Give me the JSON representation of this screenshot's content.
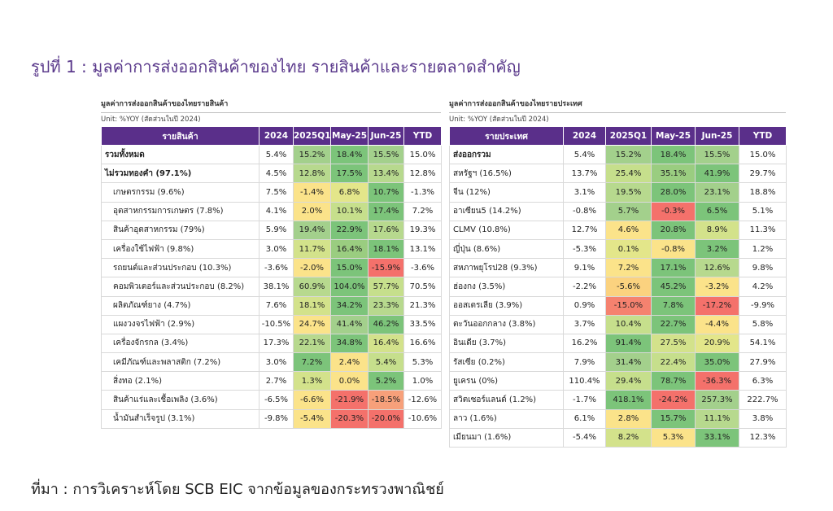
{
  "figure_title": "รูปที่ 1 : มูลค่าการส่งออกสินค้าของไทย รายสินค้าและรายตลาดสำคัญ",
  "source": "ที่มา : การวิเคราะห์โดย SCB EIC จากข้อมูลของกระทรวงพาณิชย์",
  "left_table": {
    "title": "มูลค่าการส่งออกสินค้าของไทยรายสินค้า",
    "unit": "Unit: %YOY (สัดส่วนในปี 2024)",
    "headers": [
      "รายสินค้า",
      "2024",
      "2025Q1",
      "May-25",
      "Jun-25",
      "YTD"
    ],
    "rows": [
      {
        "name": "รวมทั้งหมด",
        "style": "bold",
        "values": [
          "5.4%",
          "15.2%",
          "18.4%",
          "15.5%",
          "15.0%"
        ],
        "colors": [
          "#ffffff",
          "#a3d08c",
          "#7cc47a",
          "#a3d08c",
          "#ffffff"
        ]
      },
      {
        "name": "ไม่รวมทองคำ (97.1%)",
        "style": "bold",
        "values": [
          "4.5%",
          "12.8%",
          "17.5%",
          "13.4%",
          "12.8%"
        ],
        "colors": [
          "#ffffff",
          "#b7d98e",
          "#7cc47a",
          "#b7d98e",
          "#ffffff"
        ]
      },
      {
        "name": "เกษตรกรรม (9.6%)",
        "style": "indent",
        "values": [
          "7.5%",
          "-1.4%",
          "6.8%",
          "10.7%",
          "-1.3%"
        ],
        "colors": [
          "#ffffff",
          "#fbe38a",
          "#e3e68a",
          "#7cc47a",
          "#ffffff"
        ]
      },
      {
        "name": "อุตสาหกรรมการเกษตร (7.8%)",
        "style": "indent",
        "values": [
          "4.1%",
          "2.0%",
          "10.1%",
          "17.4%",
          "7.2%"
        ],
        "colors": [
          "#ffffff",
          "#fbe38a",
          "#c6df8c",
          "#7cc47a",
          "#ffffff"
        ]
      },
      {
        "name": "สินค้าอุตสาหกรรม (79%)",
        "style": "indent",
        "values": [
          "5.9%",
          "19.4%",
          "22.9%",
          "17.6%",
          "19.3%"
        ],
        "colors": [
          "#ffffff",
          "#a3d08c",
          "#7cc47a",
          "#b7d98e",
          "#ffffff"
        ]
      },
      {
        "name": "เครื่องใช้ไฟฟ้า (9.8%)",
        "style": "indent",
        "values": [
          "3.0%",
          "11.7%",
          "16.4%",
          "18.1%",
          "13.1%"
        ],
        "colors": [
          "#ffffff",
          "#d3e28b",
          "#9acd80",
          "#7cc47a",
          "#ffffff"
        ]
      },
      {
        "name": "รถยนต์และส่วนประกอบ (10.3%)",
        "style": "indent",
        "values": [
          "-3.6%",
          "-2.0%",
          "15.0%",
          "-15.9%",
          "-3.6%"
        ],
        "colors": [
          "#ffffff",
          "#fbe38a",
          "#7cc47a",
          "#f4716b",
          "#ffffff"
        ]
      },
      {
        "name": "คอมพิวเตอร์และส่วนประกอบ (8.2%)",
        "style": "indent",
        "values": [
          "38.1%",
          "60.9%",
          "104.0%",
          "57.7%",
          "70.5%"
        ],
        "colors": [
          "#ffffff",
          "#b7d98e",
          "#7cc47a",
          "#c6df8c",
          "#ffffff"
        ]
      },
      {
        "name": "ผลิตภัณฑ์ยาง (4.7%)",
        "style": "indent",
        "values": [
          "7.6%",
          "18.1%",
          "34.2%",
          "23.3%",
          "21.3%"
        ],
        "colors": [
          "#ffffff",
          "#d3e28b",
          "#7cc47a",
          "#b7d98e",
          "#ffffff"
        ]
      },
      {
        "name": "แผงวงจรไฟฟ้า (2.9%)",
        "style": "indent",
        "values": [
          "-10.5%",
          "24.7%",
          "41.4%",
          "46.2%",
          "33.5%"
        ],
        "colors": [
          "#ffffff",
          "#fbe38a",
          "#a3d08c",
          "#7cc47a",
          "#ffffff"
        ]
      },
      {
        "name": "เครื่องจักรกล (3.4%)",
        "style": "indent",
        "values": [
          "17.3%",
          "22.1%",
          "34.8%",
          "16.4%",
          "16.6%"
        ],
        "colors": [
          "#ffffff",
          "#b7d98e",
          "#7cc47a",
          "#d3e28b",
          "#ffffff"
        ]
      },
      {
        "name": "เคมีภัณฑ์และพลาสติก (7.2%)",
        "style": "indent",
        "values": [
          "3.0%",
          "7.2%",
          "2.4%",
          "5.4%",
          "5.3%"
        ],
        "colors": [
          "#ffffff",
          "#7cc47a",
          "#fbe38a",
          "#c6df8c",
          "#ffffff"
        ]
      },
      {
        "name": "สิ่งทอ (2.1%)",
        "style": "indent",
        "values": [
          "2.7%",
          "1.3%",
          "0.0%",
          "5.2%",
          "1.0%"
        ],
        "colors": [
          "#ffffff",
          "#d3e28b",
          "#fbe38a",
          "#7cc47a",
          "#ffffff"
        ]
      },
      {
        "name": "สินค้าแร่และเชื้อเพลิง (3.6%)",
        "style": "indent",
        "values": [
          "-6.5%",
          "-6.6%",
          "-21.9%",
          "-18.5%",
          "-12.6%"
        ],
        "colors": [
          "#ffffff",
          "#fbe38a",
          "#f4716b",
          "#f7a07a",
          "#ffffff"
        ]
      },
      {
        "name": "น้ำมันสำเร็จรูป (3.1%)",
        "style": "indent",
        "values": [
          "-9.8%",
          "-5.4%",
          "-20.3%",
          "-20.0%",
          "-10.6%"
        ],
        "colors": [
          "#ffffff",
          "#fbe38a",
          "#f4716b",
          "#f4716b",
          "#ffffff"
        ]
      }
    ]
  },
  "right_table": {
    "title": "มูลค่าการส่งออกสินค้าของไทยรายประเทศ",
    "unit": "Unit: %YOY (สัดส่วนในปี 2024)",
    "headers": [
      "รายประเทศ",
      "2024",
      "2025Q1",
      "May-25",
      "Jun-25",
      "YTD"
    ],
    "rows": [
      {
        "name": "ส่งออกรวม",
        "style": "bold",
        "values": [
          "5.4%",
          "15.2%",
          "18.4%",
          "15.5%",
          "15.0%"
        ],
        "colors": [
          "#ffffff",
          "#a3d08c",
          "#7cc47a",
          "#a3d08c",
          "#ffffff"
        ]
      },
      {
        "name": "สหรัฐฯ (16.5%)",
        "style": "plain",
        "values": [
          "13.7%",
          "25.4%",
          "35.1%",
          "41.9%",
          "29.7%"
        ],
        "colors": [
          "#ffffff",
          "#c6df8c",
          "#9acd80",
          "#7cc47a",
          "#ffffff"
        ]
      },
      {
        "name": "จีน (12%)",
        "style": "plain",
        "values": [
          "3.1%",
          "19.5%",
          "28.0%",
          "23.1%",
          "18.8%"
        ],
        "colors": [
          "#ffffff",
          "#b7d98e",
          "#7cc47a",
          "#a3d08c",
          "#ffffff"
        ]
      },
      {
        "name": "อาเซียน5 (14.2%)",
        "style": "plain",
        "values": [
          "-0.8%",
          "5.7%",
          "-0.3%",
          "6.5%",
          "5.1%"
        ],
        "colors": [
          "#ffffff",
          "#a3d08c",
          "#f4716b",
          "#7cc47a",
          "#ffffff"
        ]
      },
      {
        "name": "CLMV (10.8%)",
        "style": "plain",
        "values": [
          "12.7%",
          "4.6%",
          "20.8%",
          "8.9%",
          "11.3%"
        ],
        "colors": [
          "#ffffff",
          "#fbe38a",
          "#7cc47a",
          "#d3e28b",
          "#ffffff"
        ]
      },
      {
        "name": "ญี่ปุ่น (8.6%)",
        "style": "plain",
        "values": [
          "-5.3%",
          "0.1%",
          "-0.8%",
          "3.2%",
          "1.2%"
        ],
        "colors": [
          "#ffffff",
          "#e3e68a",
          "#fbe38a",
          "#7cc47a",
          "#ffffff"
        ]
      },
      {
        "name": "สหภาพยุโรป28 (9.3%)",
        "style": "plain",
        "values": [
          "9.1%",
          "7.2%",
          "17.1%",
          "12.6%",
          "9.8%"
        ],
        "colors": [
          "#ffffff",
          "#fbe38a",
          "#7cc47a",
          "#b7d98e",
          "#ffffff"
        ]
      },
      {
        "name": "ฮ่องกง (3.5%)",
        "style": "plain",
        "values": [
          "-2.2%",
          "-5.6%",
          "45.2%",
          "-3.2%",
          "4.2%"
        ],
        "colors": [
          "#ffffff",
          "#fbd27f",
          "#7cc47a",
          "#fbe38a",
          "#ffffff"
        ]
      },
      {
        "name": "ออสเตรเลีย (3.9%)",
        "style": "plain",
        "values": [
          "0.9%",
          "-15.0%",
          "7.8%",
          "-17.2%",
          "-9.9%"
        ],
        "colors": [
          "#ffffff",
          "#f5826f",
          "#7cc47a",
          "#f4716b",
          "#ffffff"
        ]
      },
      {
        "name": "ตะวันออกกลาง (3.8%)",
        "style": "plain",
        "values": [
          "3.7%",
          "10.4%",
          "22.7%",
          "-4.4%",
          "5.8%"
        ],
        "colors": [
          "#ffffff",
          "#c6df8c",
          "#7cc47a",
          "#fbe38a",
          "#ffffff"
        ]
      },
      {
        "name": "อินเดีย (3.7%)",
        "style": "plain",
        "values": [
          "16.2%",
          "91.4%",
          "27.5%",
          "20.9%",
          "54.1%"
        ],
        "colors": [
          "#ffffff",
          "#7cc47a",
          "#d3e28b",
          "#e3e68a",
          "#ffffff"
        ]
      },
      {
        "name": "รัสเซีย (0.2%)",
        "style": "plain",
        "values": [
          "7.9%",
          "31.4%",
          "22.4%",
          "35.0%",
          "27.9%"
        ],
        "colors": [
          "#ffffff",
          "#a3d08c",
          "#c6df8c",
          "#7cc47a",
          "#ffffff"
        ]
      },
      {
        "name": "ยูเครน (0%)",
        "style": "plain",
        "values": [
          "110.4%",
          "29.4%",
          "78.7%",
          "-36.3%",
          "6.3%"
        ],
        "colors": [
          "#ffffff",
          "#c6df8c",
          "#7cc47a",
          "#f4716b",
          "#ffffff"
        ]
      },
      {
        "name": "สวิตเซอร์แลนด์ (1.2%)",
        "style": "plain",
        "values": [
          "-1.7%",
          "418.1%",
          "-24.2%",
          "257.3%",
          "222.7%"
        ],
        "colors": [
          "#ffffff",
          "#7cc47a",
          "#f4716b",
          "#a3d08c",
          "#ffffff"
        ]
      },
      {
        "name": "ลาว (1.6%)",
        "style": "plain",
        "values": [
          "6.1%",
          "2.8%",
          "15.7%",
          "11.1%",
          "3.8%"
        ],
        "colors": [
          "#ffffff",
          "#fbe38a",
          "#7cc47a",
          "#b7d98e",
          "#ffffff"
        ]
      },
      {
        "name": "เมียนมา (1.6%)",
        "style": "plain",
        "values": [
          "-5.4%",
          "8.2%",
          "5.3%",
          "33.1%",
          "12.3%"
        ],
        "colors": [
          "#ffffff",
          "#d3e28b",
          "#fbe38a",
          "#7cc47a",
          "#ffffff"
        ]
      }
    ]
  }
}
